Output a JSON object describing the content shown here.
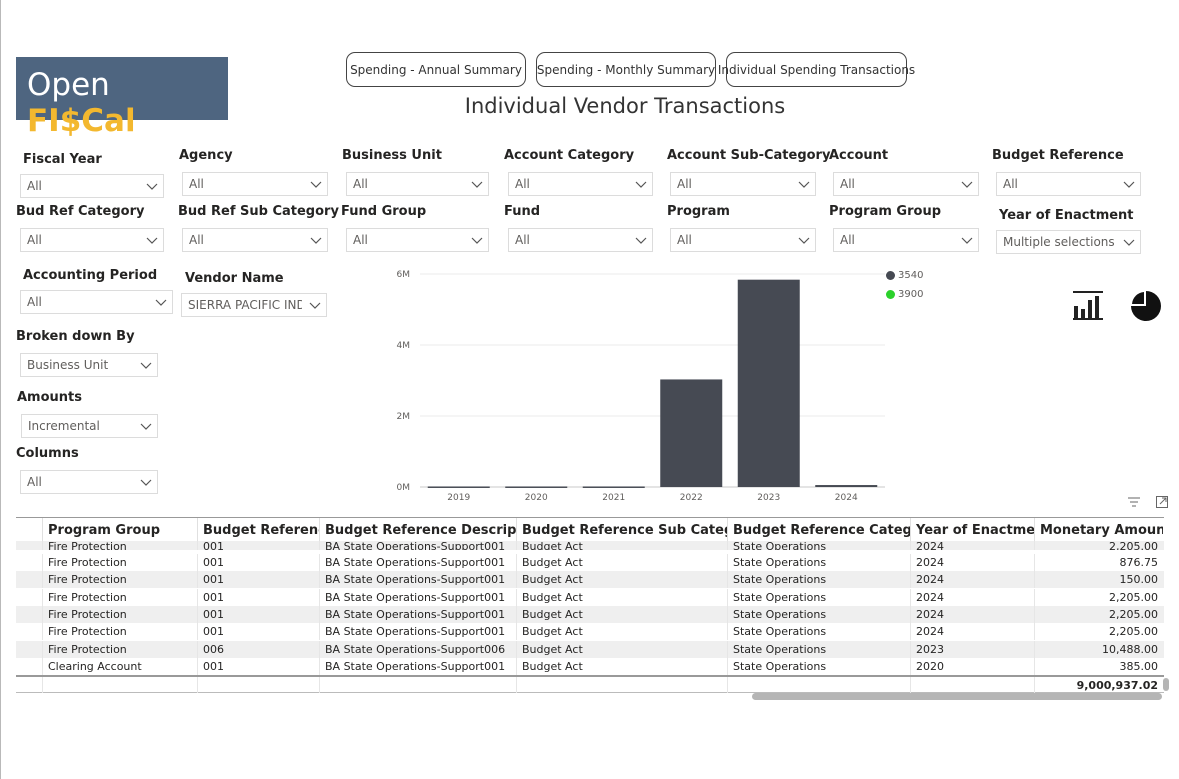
{
  "logo": {
    "open": "Open",
    "fiscal": "FI$Cal"
  },
  "nav": {
    "annual": "Spending - Annual Summary",
    "monthly": "Spending - Monthly Summary",
    "individual": "Individual Spending Transactions"
  },
  "page_title": "Individual Vendor Transactions",
  "filters": {
    "fiscal_year": {
      "label": "Fiscal Year",
      "value": "All"
    },
    "agency": {
      "label": "Agency",
      "value": "All"
    },
    "business_unit": {
      "label": "Business Unit",
      "value": "All"
    },
    "account_category": {
      "label": "Account Category",
      "value": "All"
    },
    "account_sub_category": {
      "label": "Account Sub-Category",
      "value": "All"
    },
    "account": {
      "label": "Account",
      "value": "All"
    },
    "budget_reference": {
      "label": "Budget Reference",
      "value": "All"
    },
    "bud_ref_category": {
      "label": "Bud Ref Category",
      "value": "All"
    },
    "bud_ref_sub_category": {
      "label": "Bud Ref Sub Category",
      "value": "All"
    },
    "fund_group": {
      "label": "Fund Group",
      "value": "All"
    },
    "fund": {
      "label": "Fund",
      "value": "All"
    },
    "program": {
      "label": "Program",
      "value": "All"
    },
    "program_group": {
      "label": "Program Group",
      "value": "All"
    },
    "year_of_enactment": {
      "label": "Year of Enactment",
      "value": "Multiple selections"
    },
    "accounting_period": {
      "label": "Accounting Period",
      "value": "All"
    },
    "vendor_name": {
      "label": "Vendor Name",
      "value": "SIERRA PACIFIC IND..."
    },
    "broken_down_by": {
      "label": "Broken down By",
      "value": "Business Unit"
    },
    "amounts": {
      "label": "Amounts",
      "value": "Incremental"
    },
    "columns": {
      "label": "Columns",
      "value": "All"
    }
  },
  "chart_data": {
    "type": "bar",
    "categories": [
      "2019",
      "2020",
      "2021",
      "2022",
      "2023",
      "2024"
    ],
    "series": [
      {
        "name": "3540",
        "color": "#464a53",
        "values": [
          15000,
          15000,
          15000,
          3030000,
          5840000,
          55000
        ]
      },
      {
        "name": "3900",
        "color": "#2bd12b",
        "values": [
          0,
          0,
          0,
          0,
          0,
          0
        ]
      }
    ],
    "yticks": [
      "0M",
      "2M",
      "4M",
      "6M"
    ],
    "ylim": [
      0,
      6000000
    ],
    "grid": true,
    "legend": "top-right"
  },
  "icons": {
    "bar": "bar-chart-icon",
    "pie": "pie-chart-icon",
    "filter": "filter-icon",
    "focus": "focus-mode-icon"
  },
  "table": {
    "columns": [
      "Program Group",
      "Budget Reference",
      "Budget Reference Description",
      "Budget Reference Sub Category",
      "Budget Reference Category",
      "Year of Enactment",
      "Monetary Amount"
    ],
    "partial_row": [
      "Fire Protection",
      "001",
      "BA State Operations-Support001",
      "Budget Act",
      "State Operations",
      "2024",
      "2,205.00"
    ],
    "rows": [
      [
        "Fire Protection",
        "001",
        "BA State Operations-Support001",
        "Budget Act",
        "State Operations",
        "2024",
        "876.75"
      ],
      [
        "Fire Protection",
        "001",
        "BA State Operations-Support001",
        "Budget Act",
        "State Operations",
        "2024",
        "150.00"
      ],
      [
        "Fire Protection",
        "001",
        "BA State Operations-Support001",
        "Budget Act",
        "State Operations",
        "2024",
        "2,205.00"
      ],
      [
        "Fire Protection",
        "001",
        "BA State Operations-Support001",
        "Budget Act",
        "State Operations",
        "2024",
        "2,205.00"
      ],
      [
        "Fire Protection",
        "001",
        "BA State Operations-Support001",
        "Budget Act",
        "State Operations",
        "2024",
        "2,205.00"
      ],
      [
        "Fire Protection",
        "006",
        "BA State Operations-Support006",
        "Budget Act",
        "State Operations",
        "2023",
        "10,488.00"
      ],
      [
        "Clearing Account",
        "001",
        "BA State Operations-Support001",
        "Budget Act",
        "State Operations",
        "2020",
        "385.00"
      ]
    ],
    "total": "9,000,937.02"
  }
}
